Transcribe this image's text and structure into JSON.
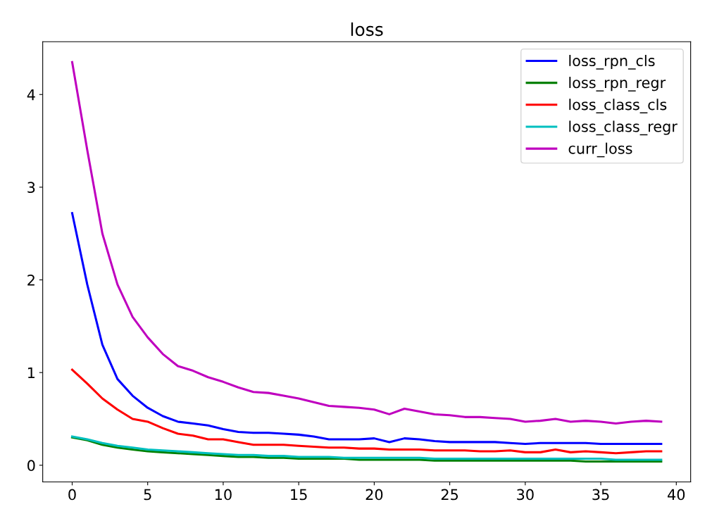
{
  "chart_data": {
    "type": "line",
    "title": "loss",
    "x": [
      0,
      1,
      2,
      3,
      4,
      5,
      6,
      7,
      8,
      9,
      10,
      11,
      12,
      13,
      14,
      15,
      16,
      17,
      18,
      19,
      20,
      21,
      22,
      23,
      24,
      25,
      26,
      27,
      28,
      29,
      30,
      31,
      32,
      33,
      34,
      35,
      36,
      37,
      38,
      39
    ],
    "series": [
      {
        "name": "loss_rpn_cls",
        "color": "#0000ff",
        "values": [
          2.72,
          1.95,
          1.3,
          0.93,
          0.75,
          0.62,
          0.53,
          0.47,
          0.45,
          0.43,
          0.39,
          0.36,
          0.35,
          0.35,
          0.34,
          0.33,
          0.31,
          0.28,
          0.28,
          0.28,
          0.29,
          0.25,
          0.29,
          0.28,
          0.26,
          0.25,
          0.25,
          0.25,
          0.25,
          0.24,
          0.23,
          0.24,
          0.24,
          0.24,
          0.24,
          0.23,
          0.23,
          0.23,
          0.23,
          0.23
        ]
      },
      {
        "name": "loss_rpn_regr",
        "color": "#008000",
        "values": [
          0.3,
          0.27,
          0.22,
          0.19,
          0.17,
          0.15,
          0.14,
          0.13,
          0.12,
          0.11,
          0.1,
          0.09,
          0.09,
          0.08,
          0.08,
          0.07,
          0.07,
          0.07,
          0.07,
          0.06,
          0.06,
          0.06,
          0.06,
          0.06,
          0.05,
          0.05,
          0.05,
          0.05,
          0.05,
          0.05,
          0.05,
          0.05,
          0.05,
          0.05,
          0.04,
          0.04,
          0.04,
          0.04,
          0.04,
          0.04
        ]
      },
      {
        "name": "loss_class_cls",
        "color": "#ff0000",
        "values": [
          1.03,
          0.88,
          0.72,
          0.6,
          0.5,
          0.47,
          0.4,
          0.34,
          0.32,
          0.28,
          0.28,
          0.25,
          0.22,
          0.22,
          0.22,
          0.21,
          0.2,
          0.19,
          0.19,
          0.18,
          0.18,
          0.17,
          0.17,
          0.17,
          0.16,
          0.16,
          0.16,
          0.15,
          0.15,
          0.16,
          0.14,
          0.14,
          0.17,
          0.14,
          0.15,
          0.14,
          0.13,
          0.14,
          0.15,
          0.15
        ]
      },
      {
        "name": "loss_class_regr",
        "color": "#00bfbf",
        "values": [
          0.31,
          0.28,
          0.24,
          0.21,
          0.19,
          0.17,
          0.16,
          0.15,
          0.14,
          0.13,
          0.12,
          0.11,
          0.11,
          0.1,
          0.1,
          0.09,
          0.09,
          0.09,
          0.08,
          0.08,
          0.08,
          0.08,
          0.08,
          0.08,
          0.07,
          0.07,
          0.07,
          0.07,
          0.07,
          0.07,
          0.07,
          0.07,
          0.07,
          0.07,
          0.07,
          0.07,
          0.06,
          0.06,
          0.06,
          0.06
        ]
      },
      {
        "name": "curr_loss",
        "color": "#bf00bf",
        "values": [
          4.35,
          3.4,
          2.5,
          1.95,
          1.6,
          1.38,
          1.2,
          1.07,
          1.02,
          0.95,
          0.9,
          0.84,
          0.79,
          0.78,
          0.75,
          0.72,
          0.68,
          0.64,
          0.63,
          0.62,
          0.6,
          0.55,
          0.61,
          0.58,
          0.55,
          0.54,
          0.52,
          0.52,
          0.51,
          0.5,
          0.47,
          0.48,
          0.5,
          0.47,
          0.48,
          0.47,
          0.45,
          0.47,
          0.48,
          0.47
        ]
      }
    ],
    "xlim": [
      -1.95,
      40.95
    ],
    "ylim": [
      -0.18,
      4.57
    ],
    "xticks": [
      0,
      5,
      10,
      15,
      20,
      25,
      30,
      35,
      40
    ],
    "yticks": [
      0,
      1,
      2,
      3,
      4
    ],
    "legend": "top right",
    "grid": false
  }
}
